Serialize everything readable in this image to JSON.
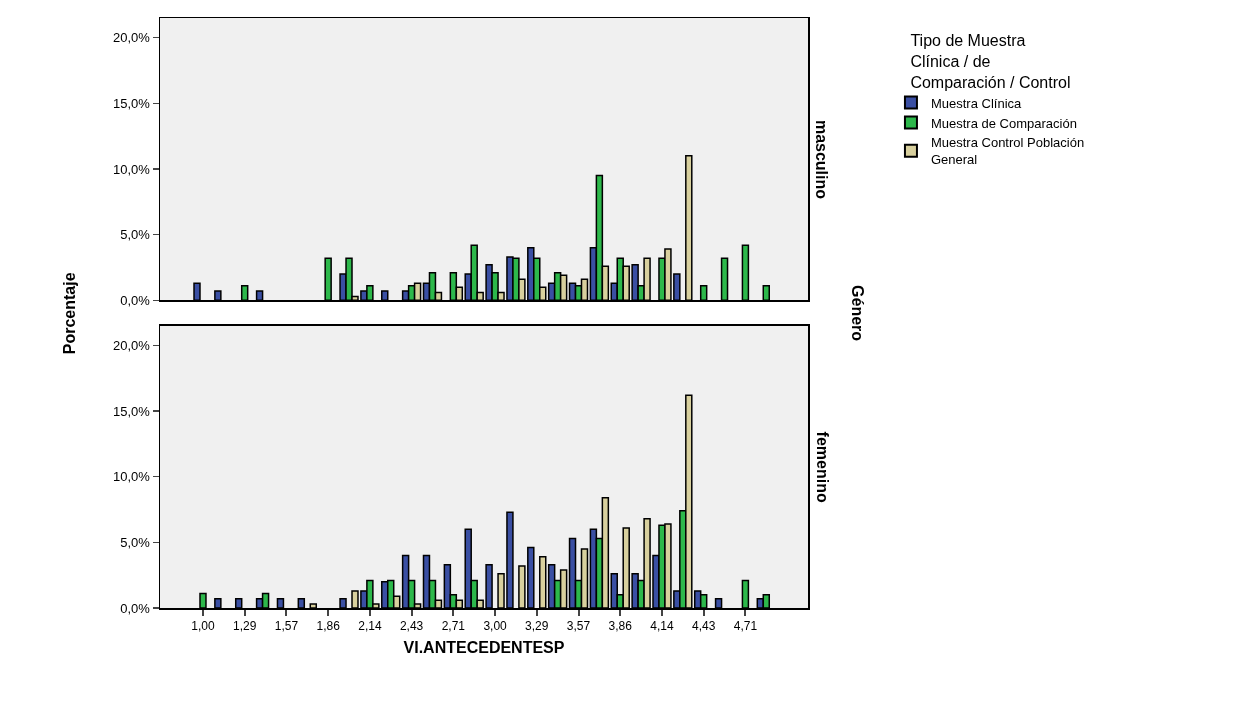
{
  "chart_data": [
    {
      "type": "bar",
      "ylabel": "Porcentaje",
      "legend_title": "Tipo de Muestra Clínica / de Comparación / Control",
      "legend": "top right",
      "tick_labels": "y",
      "grid": false,
      "annotations": [
        "masculino",
        "Género"
      ],
      "categories": [
        "1,00",
        null,
        "1,29",
        null,
        "1,57",
        null,
        "1,86",
        null,
        "2,14",
        null,
        "2,43",
        null,
        "2,71",
        null,
        "3,00",
        null,
        "3,29",
        null,
        "3,57",
        null,
        "3,86",
        null,
        "4,14",
        null,
        "4,43",
        null,
        "4,71",
        null
      ],
      "ylim": [
        0,
        21.5
      ],
      "yticks": [
        {
          "value": 0,
          "label": "0,0%"
        },
        {
          "value": 5,
          "label": "5,0%"
        },
        {
          "value": 10,
          "label": "10,0%"
        },
        {
          "value": 15,
          "label": "15,0%"
        },
        {
          "value": 20,
          "label": "20,0%"
        }
      ],
      "series": [
        {
          "name": "Muestra Clínica",
          "color": "#3a4fa3",
          "values": [
            1.3,
            0.7,
            null,
            0.7,
            null,
            null,
            null,
            2.0,
            0.7,
            0.7,
            0.7,
            1.3,
            null,
            2.0,
            2.7,
            3.3,
            4.0,
            1.3,
            1.3,
            4.0,
            1.3,
            2.7,
            null,
            2.0,
            null,
            null,
            null,
            null
          ]
        },
        {
          "name": "Muestra de Comparación",
          "color": "#2db84b",
          "values": [
            null,
            null,
            1.1,
            null,
            null,
            null,
            3.2,
            3.2,
            1.1,
            null,
            1.1,
            2.1,
            2.1,
            4.2,
            2.1,
            3.2,
            3.2,
            2.1,
            1.1,
            9.5,
            3.2,
            1.1,
            3.2,
            null,
            1.1,
            3.2,
            4.2,
            1.1
          ]
        },
        {
          "name": "Muestra Control Población General",
          "color": "#d8d09e",
          "values": [
            null,
            null,
            null,
            null,
            null,
            null,
            null,
            0.3,
            null,
            null,
            1.3,
            0.6,
            1.0,
            0.6,
            0.6,
            1.6,
            1.0,
            1.9,
            1.6,
            2.6,
            2.6,
            3.2,
            3.9,
            11.0,
            null,
            null,
            null,
            null
          ]
        }
      ]
    },
    {
      "type": "bar",
      "xlabel": "VI.ANTECEDENTESP",
      "grid": false,
      "annotations": [
        "femenino"
      ],
      "categories": [
        "1,00",
        null,
        "1,29",
        null,
        "1,57",
        null,
        "1,86",
        null,
        "2,14",
        null,
        "2,43",
        null,
        "2,71",
        null,
        "3,00",
        null,
        "3,29",
        null,
        "3,57",
        null,
        "3,86",
        null,
        "4,14",
        null,
        "4,43",
        null,
        "4,71",
        null
      ],
      "ylim": [
        0,
        21.5
      ],
      "yticks": [
        {
          "value": 0,
          "label": "0,0%"
        },
        {
          "value": 5,
          "label": "5,0%"
        },
        {
          "value": 10,
          "label": "10,0%"
        },
        {
          "value": 15,
          "label": "15,0%"
        },
        {
          "value": 20,
          "label": "20,0%"
        }
      ],
      "series": [
        {
          "color": "#3a4fa3",
          "values": [
            null,
            0.7,
            0.7,
            0.7,
            0.7,
            0.7,
            null,
            0.7,
            1.3,
            2.0,
            4.0,
            4.0,
            3.3,
            6.0,
            3.3,
            7.3,
            4.6,
            3.3,
            5.3,
            6.0,
            2.6,
            2.6,
            4.0,
            1.3,
            1.3,
            0.7,
            null,
            0.7
          ]
        },
        {
          "color": "#2db84b",
          "values": [
            1.1,
            null,
            null,
            1.1,
            null,
            null,
            null,
            null,
            2.1,
            2.1,
            2.1,
            2.1,
            1.0,
            2.1,
            null,
            null,
            null,
            2.1,
            2.1,
            5.3,
            1.0,
            2.1,
            6.3,
            7.4,
            1.0,
            null,
            2.1,
            1.0
          ]
        },
        {
          "color": "#d8d09e",
          "values": [
            null,
            null,
            null,
            null,
            null,
            0.3,
            null,
            1.3,
            0.3,
            0.9,
            0.3,
            0.6,
            0.6,
            0.6,
            2.6,
            3.2,
            3.9,
            2.9,
            4.5,
            8.4,
            6.1,
            6.8,
            6.4,
            16.2,
            null,
            null,
            null,
            null
          ]
        }
      ]
    }
  ]
}
